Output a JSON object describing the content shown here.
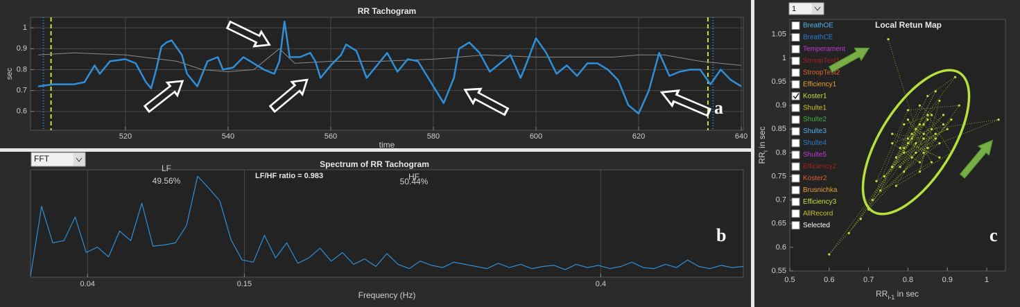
{
  "chart_data": [
    {
      "type": "line",
      "title": "RR Tachogram",
      "xlabel": "time",
      "ylabel": "sec",
      "xlim": [
        501.5,
        640.4
      ],
      "ylim": [
        0.51,
        1.05
      ],
      "xticks": [
        520,
        540,
        560,
        580,
        600,
        620,
        640
      ],
      "yticks": [
        0.6,
        0.7,
        0.8,
        0.9,
        1
      ],
      "grid": true,
      "series": [
        {
          "color": "#8a8a8a",
          "width": 1,
          "x": [
            503,
            510,
            520,
            530,
            535,
            540,
            545,
            550,
            553,
            560,
            570,
            580,
            590,
            600,
            610,
            615,
            620,
            625,
            632,
            636,
            640
          ],
          "values": [
            0.87,
            0.88,
            0.87,
            0.84,
            0.8,
            0.79,
            0.8,
            0.9,
            0.83,
            0.84,
            0.84,
            0.85,
            0.87,
            0.86,
            0.86,
            0.86,
            0.87,
            0.87,
            0.84,
            0.83,
            0.82
          ]
        },
        {
          "color": "#2f8fd8",
          "width": 2.5,
          "x": [
            503,
            506,
            510,
            512,
            514,
            515,
            517,
            520,
            522,
            524,
            525,
            526,
            527,
            528,
            529,
            531,
            532,
            534,
            536,
            538,
            539,
            541,
            543,
            545,
            547,
            549,
            550,
            551,
            552,
            554,
            556,
            557,
            558,
            560,
            562,
            563,
            565,
            567,
            569,
            571,
            573,
            575,
            577,
            579,
            581,
            582,
            584,
            585,
            587,
            589,
            591,
            593,
            595,
            597,
            598,
            600,
            602,
            604,
            606,
            608,
            610,
            612,
            614,
            616,
            618,
            620,
            622,
            624,
            626,
            628,
            630,
            632,
            634,
            636,
            638,
            640
          ],
          "values": [
            0.72,
            0.73,
            0.73,
            0.74,
            0.82,
            0.78,
            0.84,
            0.85,
            0.83,
            0.74,
            0.71,
            0.8,
            0.91,
            0.93,
            0.94,
            0.87,
            0.78,
            0.72,
            0.84,
            0.86,
            0.8,
            0.81,
            0.86,
            0.83,
            0.8,
            0.78,
            0.84,
            1.03,
            0.86,
            0.86,
            0.88,
            0.84,
            0.76,
            0.82,
            0.87,
            0.92,
            0.89,
            0.76,
            0.82,
            0.88,
            0.79,
            0.85,
            0.84,
            0.76,
            0.68,
            0.64,
            0.76,
            0.9,
            0.93,
            0.88,
            0.79,
            0.83,
            0.87,
            0.76,
            0.82,
            0.95,
            0.88,
            0.78,
            0.82,
            0.77,
            0.83,
            0.83,
            0.8,
            0.75,
            0.63,
            0.59,
            0.7,
            0.88,
            0.77,
            0.79,
            0.8,
            0.8,
            0.73,
            0.8,
            0.75,
            0.72
          ]
        }
      ],
      "vlines": [
        {
          "x": 504,
          "color": "#2f8fd8",
          "dash": "1,3"
        },
        {
          "x": 505.5,
          "color": "#c8e632",
          "dash": "6,4"
        },
        {
          "x": 633.5,
          "color": "#c8e632",
          "dash": "6,4"
        },
        {
          "x": 634.5,
          "color": "#2f8fd8",
          "dash": "1,3"
        }
      ]
    },
    {
      "type": "line",
      "title": "Spectrum of RR Tachogram",
      "xlabel": "Frequency (Hz)",
      "xlim": [
        0,
        0.5
      ],
      "ylim": [
        0,
        100
      ],
      "xticks": [
        0.04,
        0.15,
        0.4
      ],
      "grid": true,
      "series": [
        {
          "color": "#2f8fd8",
          "width": 1.2,
          "x": [
            0,
            0.0078,
            0.0156,
            0.0234,
            0.0313,
            0.0391,
            0.0469,
            0.0547,
            0.0625,
            0.0703,
            0.0781,
            0.0859,
            0.0938,
            0.1016,
            0.1094,
            0.1172,
            0.125,
            0.1328,
            0.1406,
            0.1484,
            0.1563,
            0.1641,
            0.1719,
            0.1797,
            0.1875,
            0.1953,
            0.2031,
            0.2109,
            0.2188,
            0.2266,
            0.2344,
            0.2422,
            0.25,
            0.2578,
            0.2656,
            0.2734,
            0.2813,
            0.2891,
            0.2969,
            0.3047,
            0.3125,
            0.3203,
            0.3281,
            0.3359,
            0.3438,
            0.3516,
            0.3594,
            0.3672,
            0.375,
            0.3828,
            0.3906,
            0.3984,
            0.4063,
            0.4141,
            0.4219,
            0.4297,
            0.4375,
            0.4453,
            0.4531,
            0.4609,
            0.4688,
            0.4766,
            0.4844,
            0.4922,
            0.5
          ],
          "values": [
            1,
            66,
            32,
            34,
            56,
            23,
            28,
            19,
            43,
            34,
            69,
            29,
            30,
            32,
            48,
            94,
            83,
            71,
            35,
            16,
            14,
            39,
            18,
            32,
            13,
            18,
            27,
            15,
            23,
            12,
            17,
            10,
            22,
            12,
            8,
            15,
            11,
            9,
            14,
            12,
            10,
            8,
            13,
            9,
            12,
            8,
            10,
            11,
            7,
            12,
            9,
            11,
            8,
            10,
            14,
            9,
            8,
            12,
            9,
            16,
            10,
            8,
            11,
            9,
            10
          ]
        }
      ],
      "band_labels": [
        {
          "name": "LF",
          "share": "49.56%"
        },
        {
          "name": "HF",
          "share": "50.44%"
        }
      ],
      "ratio_label": "LF/HF ratio = 0.983"
    },
    {
      "type": "scatter",
      "title": "Local Retun Map",
      "xlabel": {
        "base": "RR",
        "sub": "i-1",
        "rest": " in sec"
      },
      "ylabel": {
        "base": "RR",
        "sub": "i",
        "rest": " in sec"
      },
      "xlim": [
        0.5,
        1.0475
      ],
      "ylim": [
        0.55,
        1.082
      ],
      "xticks": [
        0.5,
        0.6,
        0.7,
        0.8,
        0.9,
        1
      ],
      "yticks": [
        0.55,
        0.6,
        0.65,
        0.7,
        0.75,
        0.8,
        0.85,
        0.9,
        0.95,
        1,
        1.05
      ],
      "grid": false,
      "series": [
        {
          "color": "#c5e03a",
          "x": [
            0.75,
            0.82,
            0.88,
            0.79,
            0.85,
            0.91,
            0.77,
            0.84,
            0.8,
            0.86,
            0.73,
            0.83,
            0.89,
            0.78,
            0.81,
            0.87,
            0.76,
            0.85,
            0.92,
            0.8,
            0.84,
            0.71,
            0.79,
            0.86,
            0.83,
            0.88,
            0.74,
            0.82,
            0.9,
            0.77,
            0.81,
            0.85,
            0.6,
            0.68,
            0.79,
            0.84,
            0.87,
            0.72,
            0.8,
            0.93,
            0.83,
            0.76,
            0.86,
            1.03,
            0.82,
            0.78,
            0.89,
            0.84,
            0.65,
            0.81,
            0.87,
            0.79,
            0.85,
            0.91,
            0.7,
            0.83,
            0.8,
            0.88,
            0.76,
            0.84
          ],
          "values": [
            1.04,
            0.85,
            0.82,
            0.76,
            0.88,
            0.8,
            0.73,
            0.83,
            0.87,
            0.78,
            0.72,
            0.9,
            0.86,
            0.81,
            0.79,
            0.84,
            0.77,
            0.92,
            0.96,
            0.83,
            0.8,
            0.7,
            0.86,
            0.88,
            0.76,
            0.91,
            0.75,
            0.82,
            0.85,
            0.79,
            0.84,
            0.87,
            0.585,
            0.66,
            0.81,
            0.86,
            0.83,
            0.74,
            0.89,
            0.9,
            0.78,
            0.82,
            0.85,
            0.87,
            0.8,
            0.77,
            0.88,
            0.84,
            0.63,
            0.83,
            0.93,
            0.8,
            0.81,
            0.87,
            0.68,
            0.86,
            0.82,
            0.79,
            0.84,
            0.83
          ]
        }
      ]
    }
  ],
  "controls": {
    "method_select": "FFT",
    "record_select": "1",
    "checklist": [
      {
        "label": "BreathOE",
        "color": "#4fb3ef",
        "checked": false
      },
      {
        "label": "BreathCE",
        "color": "#2a7fd0",
        "checked": false
      },
      {
        "label": "Temperament",
        "color": "#c23ad0",
        "checked": false
      },
      {
        "label": "StroopTest1",
        "color": "#a02020",
        "checked": false
      },
      {
        "label": "StroopTest2",
        "color": "#e0602a",
        "checked": false
      },
      {
        "label": "Efficiency1",
        "color": "#e8a030",
        "checked": false
      },
      {
        "label": "Koster1",
        "color": "#c5e03a",
        "checked": true
      },
      {
        "label": "Shulte1",
        "color": "#c8c020",
        "checked": false
      },
      {
        "label": "Shulte2",
        "color": "#40b040",
        "checked": false
      },
      {
        "label": "Shulte3",
        "color": "#4fb3ef",
        "checked": false
      },
      {
        "label": "Shulte4",
        "color": "#2a7fd0",
        "checked": false
      },
      {
        "label": "Shulte5",
        "color": "#c23ad0",
        "checked": false
      },
      {
        "label": "Efficiency2",
        "color": "#a02020",
        "checked": false
      },
      {
        "label": "Koster2",
        "color": "#e0602a",
        "checked": false
      },
      {
        "label": "Brusnichka",
        "color": "#e8a030",
        "checked": false
      },
      {
        "label": "Efficiency3",
        "color": "#c5e03a",
        "checked": false
      },
      {
        "label": "AllRecord",
        "color": "#c8c020",
        "checked": false
      },
      {
        "label": "Selected",
        "color": "#ffffff",
        "checked": false
      }
    ]
  },
  "panel_labels": [
    "a",
    "b",
    "c"
  ]
}
